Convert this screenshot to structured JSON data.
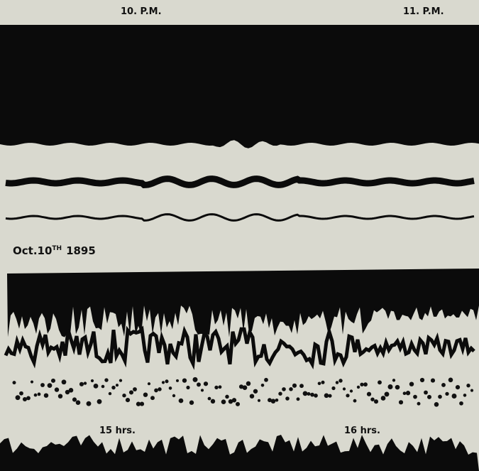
{
  "time_marks": {
    "first": "10. P.M.",
    "second": "11. P.M."
  },
  "date_label": {
    "text": "Oct.10",
    "superscript": "TH",
    "year": "1895"
  },
  "hour_marks": {
    "first": "15 hrs.",
    "second": "16 hrs."
  }
}
